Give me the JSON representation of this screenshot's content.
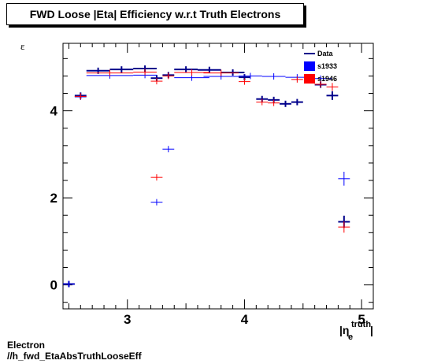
{
  "chart_data": {
    "type": "scatter",
    "title": "FWD Loose |Eta| Efficiency w.r.t Truth Electrons",
    "ylabel": "ε",
    "xlabel": "|η_e^truth|",
    "xlabel_main": "|η",
    "xlabel_sub": "e",
    "xlabel_sup": "truth",
    "xlabel_end": "|",
    "xlim": [
      2.45,
      5.1
    ],
    "ylim": [
      -0.55,
      5.55
    ],
    "x_ticks": [
      3,
      4,
      5
    ],
    "y_ticks": [
      0,
      2,
      4
    ],
    "grid": false,
    "legend_position": "top-right",
    "series": [
      {
        "name": "Data",
        "color": "#00008b",
        "style": "errorbar",
        "points": [
          {
            "x": 2.5,
            "xerr": 0.05,
            "y": 0.02,
            "yerr": 0.02
          },
          {
            "x": 2.6,
            "xerr": 0.05,
            "y": 4.35,
            "yerr": 0.04
          },
          {
            "x": 2.75,
            "xerr": 0.1,
            "y": 4.92,
            "yerr": 0.02
          },
          {
            "x": 2.95,
            "xerr": 0.1,
            "y": 4.95,
            "yerr": 0.02
          },
          {
            "x": 3.15,
            "xerr": 0.1,
            "y": 4.97,
            "yerr": 0.02
          },
          {
            "x": 3.25,
            "xerr": 0.05,
            "y": 4.75,
            "yerr": 0.03
          },
          {
            "x": 3.35,
            "xerr": 0.05,
            "y": 4.82,
            "yerr": 0.03
          },
          {
            "x": 3.5,
            "xerr": 0.1,
            "y": 4.95,
            "yerr": 0.02
          },
          {
            "x": 3.7,
            "xerr": 0.1,
            "y": 4.94,
            "yerr": 0.02
          },
          {
            "x": 3.9,
            "xerr": 0.1,
            "y": 4.88,
            "yerr": 0.03
          },
          {
            "x": 4.0,
            "xerr": 0.05,
            "y": 4.77,
            "yerr": 0.04
          },
          {
            "x": 4.15,
            "xerr": 0.05,
            "y": 4.27,
            "yerr": 0.06
          },
          {
            "x": 4.25,
            "xerr": 0.05,
            "y": 4.25,
            "yerr": 0.06
          },
          {
            "x": 4.35,
            "xerr": 0.05,
            "y": 4.16,
            "yerr": 0.07
          },
          {
            "x": 4.45,
            "xerr": 0.05,
            "y": 4.2,
            "yerr": 0.07
          },
          {
            "x": 4.65,
            "xerr": 0.05,
            "y": 4.6,
            "yerr": 0.06
          },
          {
            "x": 4.75,
            "xerr": 0.05,
            "y": 4.35,
            "yerr": 0.1
          },
          {
            "x": 4.85,
            "xerr": 0.05,
            "y": 1.45,
            "yerr": 0.14
          }
        ]
      },
      {
        "name": "s1933",
        "color": "#0000ff",
        "style": "errorbar",
        "points": [
          {
            "x": 2.5,
            "xerr": 0.05,
            "y": 0.02,
            "yerr": 0.02
          },
          {
            "x": 2.6,
            "xerr": 0.05,
            "y": 4.32,
            "yerr": 0.04
          },
          {
            "x": 2.85,
            "xerr": 0.2,
            "y": 4.81,
            "yerr": 0.02
          },
          {
            "x": 3.15,
            "xerr": 0.1,
            "y": 4.82,
            "yerr": 0.02
          },
          {
            "x": 3.25,
            "xerr": 0.05,
            "y": 1.9,
            "yerr": 0.05
          },
          {
            "x": 3.35,
            "xerr": 0.05,
            "y": 3.12,
            "yerr": 0.05
          },
          {
            "x": 3.55,
            "xerr": 0.15,
            "y": 4.76,
            "yerr": 0.02
          },
          {
            "x": 3.8,
            "xerr": 0.15,
            "y": 4.79,
            "yerr": 0.02
          },
          {
            "x": 4.05,
            "xerr": 0.1,
            "y": 4.8,
            "yerr": 0.02
          },
          {
            "x": 4.25,
            "xerr": 0.1,
            "y": 4.79,
            "yerr": 0.02
          },
          {
            "x": 4.45,
            "xerr": 0.1,
            "y": 4.77,
            "yerr": 0.02
          },
          {
            "x": 4.65,
            "xerr": 0.1,
            "y": 4.74,
            "yerr": 0.03
          },
          {
            "x": 4.85,
            "xerr": 0.05,
            "y": 2.44,
            "yerr": 0.16
          }
        ]
      },
      {
        "name": "s1946",
        "color": "#ff0000",
        "style": "errorbar",
        "points": [
          {
            "x": 2.6,
            "xerr": 0.05,
            "y": 4.33,
            "yerr": 0.04
          },
          {
            "x": 2.85,
            "xerr": 0.2,
            "y": 4.87,
            "yerr": 0.02
          },
          {
            "x": 3.15,
            "xerr": 0.1,
            "y": 4.89,
            "yerr": 0.02
          },
          {
            "x": 3.25,
            "xerr": 0.05,
            "y": 4.68,
            "yerr": 0.03
          },
          {
            "x": 3.25,
            "xerr": 0.05,
            "y": 2.47,
            "yerr": 0.05
          },
          {
            "x": 3.35,
            "xerr": 0.05,
            "y": 4.8,
            "yerr": 0.03
          },
          {
            "x": 3.55,
            "xerr": 0.15,
            "y": 4.88,
            "yerr": 0.02
          },
          {
            "x": 3.8,
            "xerr": 0.15,
            "y": 4.87,
            "yerr": 0.02
          },
          {
            "x": 4.0,
            "xerr": 0.05,
            "y": 4.67,
            "yerr": 0.04
          },
          {
            "x": 4.15,
            "xerr": 0.05,
            "y": 4.2,
            "yerr": 0.06
          },
          {
            "x": 4.25,
            "xerr": 0.05,
            "y": 4.18,
            "yerr": 0.06
          },
          {
            "x": 4.45,
            "xerr": 0.05,
            "y": 4.72,
            "yerr": 0.05
          },
          {
            "x": 4.65,
            "xerr": 0.05,
            "y": 4.61,
            "yerr": 0.06
          },
          {
            "x": 4.75,
            "xerr": 0.05,
            "y": 4.55,
            "yerr": 0.09
          },
          {
            "x": 4.85,
            "xerr": 0.05,
            "y": 1.33,
            "yerr": 0.13
          }
        ]
      }
    ]
  },
  "footer": {
    "line1": "Electron",
    "line2": "//h_fwd_EtaAbsTruthLooseEff"
  }
}
